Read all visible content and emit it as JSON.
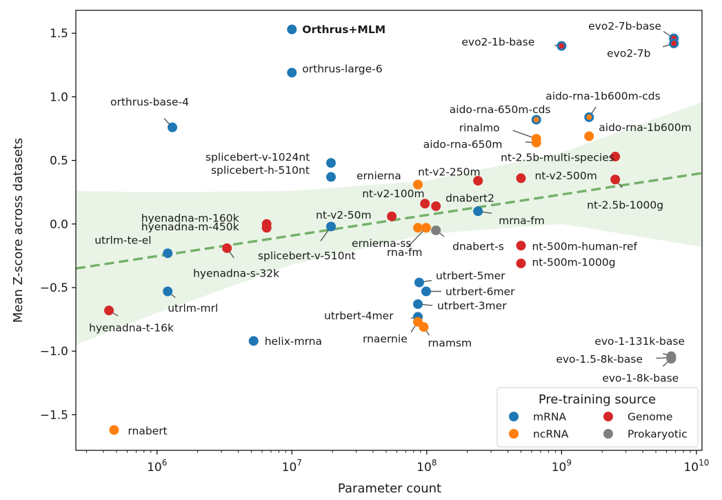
{
  "chart_data": {
    "type": "scatter",
    "xlabel": "Parameter count",
    "ylabel": "Mean Z-score across datasets",
    "x_scale": "log",
    "xlim": [
      250000,
      11000000000
    ],
    "ylim": [
      -1.78,
      1.68
    ],
    "x_ticks": [
      {
        "value": 1000000,
        "base": "10",
        "exp": "6"
      },
      {
        "value": 10000000,
        "base": "10",
        "exp": "7"
      },
      {
        "value": 100000000,
        "base": "10",
        "exp": "8"
      },
      {
        "value": 1000000000,
        "base": "10",
        "exp": "9"
      },
      {
        "value": 10000000000,
        "base": "10",
        "exp": "10"
      }
    ],
    "y_ticks": [
      {
        "value": 1.5,
        "label": "1.5"
      },
      {
        "value": 1.0,
        "label": "1.0"
      },
      {
        "value": 0.5,
        "label": "0.5"
      },
      {
        "value": 0.0,
        "label": "0.0"
      },
      {
        "value": -0.5,
        "label": "−0.5"
      },
      {
        "value": -1.0,
        "label": "−1.0"
      },
      {
        "value": -1.5,
        "label": "−1.5"
      }
    ],
    "grid": false,
    "legend": {
      "title": "Pre-training source",
      "placement": "bottom-right",
      "entries": [
        {
          "label": "mRNA",
          "color": "#1f77b4"
        },
        {
          "label": "Genome",
          "color": "#d62728"
        },
        {
          "label": "ncRNA",
          "color": "#ff7f0e"
        },
        {
          "label": "Prokaryotic",
          "color": "#7f7f7f"
        }
      ]
    },
    "trend": {
      "x": [
        250000,
        11000000000
      ],
      "y": [
        -0.35,
        0.4
      ],
      "color": "#74b06a"
    },
    "confidence_band": {
      "x": [
        250000,
        1000000,
        10000000,
        100000000,
        1000000000,
        11000000000
      ],
      "upper": [
        0.26,
        0.25,
        0.26,
        0.34,
        0.56,
        0.96
      ],
      "lower": [
        -0.95,
        -0.7,
        -0.32,
        -0.08,
        0.0,
        -0.18
      ],
      "color": "#e9f4e6"
    },
    "series": [
      {
        "name": "mRNA",
        "color": "#1f77b4",
        "points": [
          {
            "label": "Orthrus+MLM",
            "x": 10000000,
            "y": 1.53,
            "bold": true
          },
          {
            "label": "orthrus-large-6",
            "x": 10000000,
            "y": 1.19
          },
          {
            "label": "orthrus-base-4",
            "x": 1300000,
            "y": 0.76
          },
          {
            "label": "splicebert-v-1024nt",
            "x": 19500000,
            "y": 0.48
          },
          {
            "label": "splicebert-h-510nt",
            "x": 19500000,
            "y": 0.37
          },
          {
            "label": "splicebert-v-510nt",
            "x": 19500000,
            "y": -0.02
          },
          {
            "label": "utrlm-te-el",
            "x": 1200000,
            "y": -0.23
          },
          {
            "label": "utrlm-mrl",
            "x": 1200000,
            "y": -0.53
          },
          {
            "label": "helix-mrna",
            "x": 5200000,
            "y": -0.92
          },
          {
            "label": "mrna-fm",
            "x": 240000000,
            "y": 0.1
          },
          {
            "label": "utrbert-5mer",
            "x": 88000000,
            "y": -0.46
          },
          {
            "label": "utrbert-6mer",
            "x": 99000000,
            "y": -0.53
          },
          {
            "label": "utrbert-3mer",
            "x": 86000000,
            "y": -0.63
          },
          {
            "label": "utrbert-4mer",
            "x": 86000000,
            "y": -0.73
          },
          {
            "label": "evo2-1b-base",
            "x": 1000000000,
            "y": 1.4,
            "inner": "#d62728"
          },
          {
            "label": "evo2-7b-base",
            "x": 6800000000,
            "y": 1.46,
            "inner": "#d62728"
          },
          {
            "label": "evo2-7b",
            "x": 6800000000,
            "y": 1.42,
            "inner": "#d62728"
          },
          {
            "label": "aido-rna-650m-cds",
            "x": 650000000,
            "y": 0.82,
            "inner": "#ff7f0e"
          },
          {
            "label": "aido-rna-1b600m-cds",
            "x": 1600000000,
            "y": 0.84,
            "inner": "#ff7f0e"
          }
        ]
      },
      {
        "name": "ncRNA",
        "color": "#ff7f0e",
        "points": [
          {
            "label": "rinalmo",
            "x": 650000000,
            "y": 0.67
          },
          {
            "label": "aido-rna-650m",
            "x": 650000000,
            "y": 0.64
          },
          {
            "label": "aido-rna-1b600m",
            "x": 1600000000,
            "y": 0.69
          },
          {
            "label": "ernierna",
            "x": 86000000,
            "y": 0.31
          },
          {
            "label": "ernierna-ss",
            "x": 86000000,
            "y": -0.03
          },
          {
            "label": "rna-fm",
            "x": 99000000,
            "y": -0.03
          },
          {
            "label": "rnaernie",
            "x": 86000000,
            "y": -0.77
          },
          {
            "label": "rnamsm",
            "x": 95000000,
            "y": -0.81
          },
          {
            "label": "rnabert",
            "x": 480000,
            "y": -1.62
          }
        ]
      },
      {
        "name": "Genome",
        "color": "#d62728",
        "points": [
          {
            "label": "nt-2.5b-multi-species",
            "x": 2500000000,
            "y": 0.53
          },
          {
            "label": "nt-v2-250m",
            "x": 240000000,
            "y": 0.34
          },
          {
            "label": "nt-v2-500m",
            "x": 500000000,
            "y": 0.36
          },
          {
            "label": "nt-2.5b-1000g",
            "x": 2500000000,
            "y": 0.35
          },
          {
            "label": "nt-v2-100m",
            "x": 97000000,
            "y": 0.16
          },
          {
            "label": "dnabert2",
            "x": 117000000,
            "y": 0.14
          },
          {
            "label": "nt-v2-50m",
            "x": 55000000,
            "y": 0.06
          },
          {
            "label": "hyenadna-m-160k",
            "x": 6500000,
            "y": 0.0
          },
          {
            "label": "hyenadna-m-450k",
            "x": 6500000,
            "y": -0.03
          },
          {
            "label": "hyenadna-s-32k",
            "x": 3300000,
            "y": -0.19
          },
          {
            "label": "hyenadna-t-16k",
            "x": 440000,
            "y": -0.68
          },
          {
            "label": "nt-500m-human-ref",
            "x": 500000000,
            "y": -0.17
          },
          {
            "label": "nt-500m-1000g",
            "x": 500000000,
            "y": -0.31
          }
        ]
      },
      {
        "name": "Prokaryotic",
        "color": "#7f7f7f",
        "points": [
          {
            "label": "dnabert-s",
            "x": 117000000,
            "y": -0.05
          },
          {
            "label": "evo-1-131k-base",
            "x": 6500000000,
            "y": -1.04
          },
          {
            "label": "evo-1.5-8k-base",
            "x": 6500000000,
            "y": -1.05
          },
          {
            "label": "evo-1-8k-base",
            "x": 6500000000,
            "y": -1.06
          }
        ]
      }
    ]
  }
}
